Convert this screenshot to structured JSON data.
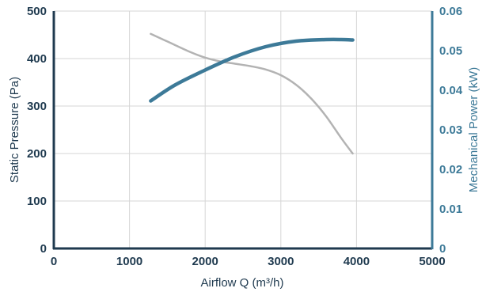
{
  "chart_data": {
    "type": "line",
    "xlabel": "Airflow Q (m³/h)",
    "ylabel": "Static Pressure (Pa)",
    "y2label": "Mechanical Power (kW)",
    "xlim": [
      0,
      5000
    ],
    "ylim": [
      0,
      500
    ],
    "y2lim": [
      0,
      0.06
    ],
    "xticks": [
      "0",
      "1000",
      "2000",
      "3000",
      "4000",
      "5000"
    ],
    "yticks": [
      "0",
      "100",
      "200",
      "300",
      "400",
      "500"
    ],
    "y2ticks": [
      "0",
      "0.01",
      "0.02",
      "0.03",
      "0.04",
      "0.05",
      "0.06"
    ],
    "grid": true,
    "series": [
      {
        "axis": "left",
        "color": "#b3b3b3",
        "x": [
          1280,
          1500,
          1800,
          2000,
          2200,
          2400,
          2600,
          2800,
          3000,
          3200,
          3400,
          3600,
          3800,
          3950
        ],
        "y": [
          452,
          436,
          414,
          402,
          394,
          389,
          384,
          377,
          365,
          345,
          316,
          278,
          232,
          200
        ]
      },
      {
        "axis": "right",
        "color": "#3d7a98",
        "x": [
          1280,
          1600,
          2000,
          2400,
          2800,
          3200,
          3600,
          3800,
          3950
        ],
        "y": [
          0.0373,
          0.0413,
          0.0451,
          0.0485,
          0.051,
          0.0524,
          0.0528,
          0.0528,
          0.0527
        ]
      }
    ]
  }
}
